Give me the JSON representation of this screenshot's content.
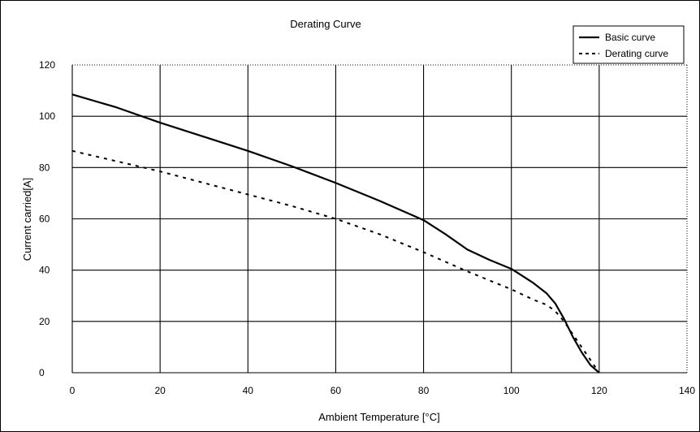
{
  "chart_data": {
    "type": "line",
    "title": "Derating Curve",
    "xlabel": "Ambient Temperature [°C]",
    "ylabel": "Current carried[A]",
    "xlim": [
      0,
      140
    ],
    "ylim": [
      0,
      120
    ],
    "xticks": [
      0,
      20,
      40,
      60,
      80,
      100,
      120,
      140
    ],
    "yticks": [
      0,
      20,
      40,
      60,
      80,
      100,
      120
    ],
    "grid": true,
    "legend_position": "top-right",
    "series": [
      {
        "name": "Basic curve",
        "style": "solid",
        "color": "#000000",
        "x": [
          0,
          10,
          20,
          30,
          40,
          50,
          60,
          70,
          80,
          85,
          90,
          95,
          100,
          105,
          108,
          110,
          112,
          114,
          116,
          118,
          120
        ],
        "y": [
          108.5,
          103.5,
          97.5,
          92,
          86.5,
          80.5,
          74,
          67,
          59.5,
          54,
          48,
          44,
          40.5,
          35,
          31,
          27,
          21,
          14,
          8,
          3,
          0
        ]
      },
      {
        "name": "Derating curve",
        "style": "dashed",
        "color": "#000000",
        "x": [
          0,
          10,
          20,
          30,
          40,
          50,
          60,
          70,
          80,
          90,
          100,
          105,
          108,
          110,
          112,
          114,
          116,
          118,
          120
        ],
        "y": [
          86.5,
          82.5,
          78.5,
          74,
          69.5,
          65,
          60,
          54,
          47,
          39.5,
          32.5,
          28.5,
          26.5,
          24,
          20,
          15,
          10,
          5,
          0
        ]
      }
    ]
  }
}
